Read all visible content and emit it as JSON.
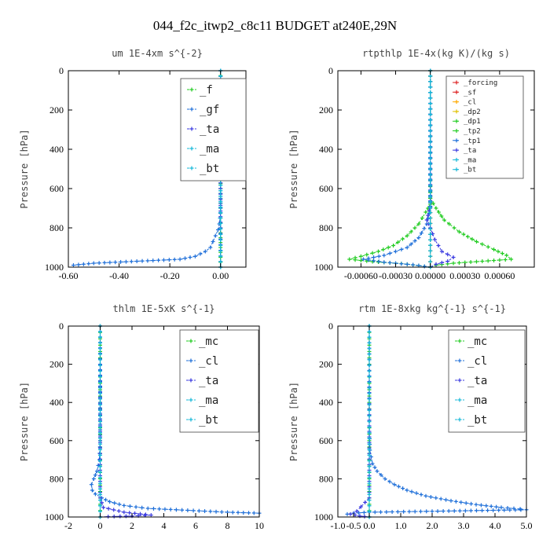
{
  "figure": {
    "title": "044_f2c_itwp2_c8c11  BUDGET at240E,29N"
  },
  "colors": {
    "green": "#22cc22",
    "blue": "#1e6fd9",
    "purple": "#3a3ae0",
    "cyan": "#16b8d8",
    "red": "#dd2222",
    "orange": "#ffaa00",
    "yellow": "#e0c000",
    "navy": "#1133aa"
  },
  "chart_data": [
    {
      "type": "line",
      "title": "um  1E-4xm s^{-2}",
      "ylabel": "Pressure [hPa]",
      "xlabel": "",
      "xlim": [
        -0.6,
        0.1
      ],
      "ylim": [
        1000,
        0
      ],
      "xticks": [
        -0.6,
        -0.4,
        -0.2,
        0.0
      ],
      "xtick_labels": [
        "-0.60",
        "-0.40",
        "-0.20",
        "0.00"
      ],
      "yticks": [
        0,
        200,
        400,
        600,
        800,
        1000
      ],
      "legend_size": "big",
      "series": [
        {
          "name": "_f",
          "color": "#22cc22",
          "x": [
            0,
            0,
            0,
            0,
            0,
            0,
            0,
            0,
            0,
            0,
            0
          ],
          "y": [
            0,
            100,
            200,
            300,
            400,
            500,
            600,
            700,
            800,
            900,
            1000
          ]
        },
        {
          "name": "_gf",
          "color": "#1e6fd9",
          "x": [
            0,
            0,
            0,
            0,
            0,
            0,
            -0.002,
            -0.005,
            -0.01,
            -0.02,
            -0.03,
            -0.04,
            -0.06,
            -0.1,
            -0.16,
            -0.33,
            -0.5,
            -0.58
          ],
          "y": [
            0,
            200,
            400,
            600,
            650,
            700,
            750,
            780,
            810,
            840,
            870,
            900,
            920,
            945,
            960,
            970,
            980,
            990
          ]
        },
        {
          "name": "_ta",
          "color": "#3a3ae0",
          "x": [
            0,
            0,
            0,
            0
          ],
          "y": [
            0,
            400,
            800,
            1000
          ]
        },
        {
          "name": "_ma",
          "color": "#16b8d8",
          "x": [
            0,
            0,
            0
          ],
          "y": [
            0,
            500,
            1000
          ]
        },
        {
          "name": "_bt",
          "color": "#16b8d8",
          "x": [
            0,
            0,
            0
          ],
          "y": [
            0,
            500,
            1000
          ]
        }
      ]
    },
    {
      "type": "line",
      "title": "rtpthlp  1E-4x(kg K)/(kg s)",
      "ylabel": "Pressure [hPa]",
      "xlabel": "",
      "xlim": [
        -0.0008,
        0.0009
      ],
      "ylim": [
        1000,
        0
      ],
      "xticks": [
        -0.0006,
        -0.0003,
        0.0,
        0.0003,
        0.0006
      ],
      "xtick_labels": [
        "-0.00060",
        "-0.00030",
        "0.00000",
        "0.00030",
        "0.00060"
      ],
      "yticks": [
        0,
        200,
        400,
        600,
        800,
        1000
      ],
      "legend_size": "small",
      "series": [
        {
          "name": "_forcing",
          "color": "#dd2222",
          "x": [
            0,
            0,
            0,
            0,
            0
          ],
          "y": [
            0,
            250,
            500,
            750,
            1000
          ]
        },
        {
          "name": "_sf",
          "color": "#dd2222",
          "x": [
            0,
            0,
            0,
            0,
            0
          ],
          "y": [
            0,
            250,
            500,
            750,
            1000
          ]
        },
        {
          "name": "_cl",
          "color": "#ffaa00",
          "x": [
            0,
            0,
            0
          ],
          "y": [
            0,
            500,
            1000
          ]
        },
        {
          "name": "_dp2",
          "color": "#e0c000",
          "x": [
            0,
            0,
            0
          ],
          "y": [
            0,
            500,
            1000
          ]
        },
        {
          "name": "_dp1",
          "color": "#22cc22",
          "x": [
            0,
            0,
            0,
            5e-05,
            0.00012,
            0.00025,
            0.0004,
            0.00055,
            0.00066,
            0.0007,
            0.00045,
            0.0002,
            5e-05,
            0.0
          ],
          "y": [
            0,
            500,
            650,
            700,
            760,
            820,
            870,
            910,
            940,
            960,
            970,
            980,
            990,
            1000
          ]
        },
        {
          "name": "_tp2",
          "color": "#22cc22",
          "x": [
            0,
            0,
            0,
            -4e-05,
            -0.0001,
            -0.0002,
            -0.00032,
            -0.00045,
            -0.0006,
            -0.0007,
            -0.0005,
            -0.00025,
            -0.0001,
            0.0
          ],
          "y": [
            0,
            500,
            680,
            720,
            780,
            840,
            890,
            920,
            945,
            960,
            972,
            982,
            992,
            1000
          ]
        },
        {
          "name": "_tp1",
          "color": "#1e6fd9",
          "x": [
            0,
            0,
            -3e-05,
            -0.0001,
            -0.0002,
            -0.0004,
            -0.00058,
            -0.0004,
            -0.00015,
            0.0
          ],
          "y": [
            0,
            700,
            780,
            850,
            900,
            940,
            960,
            975,
            988,
            1000
          ]
        },
        {
          "name": "_ta",
          "color": "#3a3ae0",
          "x": [
            0,
            0,
            -3e-05,
            0.0,
            4e-05,
            0.0001,
            0.0002,
            0.00015,
            5e-05,
            0.0
          ],
          "y": [
            0,
            690,
            760,
            800,
            860,
            920,
            950,
            970,
            985,
            1000
          ]
        },
        {
          "name": "_ma",
          "color": "#16b8d8",
          "x": [
            0,
            0,
            0
          ],
          "y": [
            0,
            500,
            1000
          ]
        },
        {
          "name": "_bt",
          "color": "#16b8d8",
          "x": [
            0,
            0,
            0
          ],
          "y": [
            0,
            500,
            1000
          ]
        }
      ]
    },
    {
      "type": "line",
      "title": "thlm  1E-5xK s^{-1}",
      "ylabel": "Pressure [hPa]",
      "xlabel": "",
      "xlim": [
        -2,
        10
      ],
      "ylim": [
        1000,
        0
      ],
      "xticks": [
        -2,
        0,
        2,
        4,
        6,
        8,
        10
      ],
      "xtick_labels": [
        "-2",
        "0",
        "2",
        "4",
        "6",
        "8",
        "10"
      ],
      "yticks": [
        0,
        200,
        400,
        600,
        800,
        1000
      ],
      "legend_size": "big",
      "series": [
        {
          "name": "_mc",
          "color": "#22cc22",
          "x": [
            0,
            0,
            0,
            0,
            0,
            0,
            0,
            0,
            0,
            0,
            0
          ],
          "y": [
            0,
            100,
            200,
            300,
            400,
            500,
            600,
            700,
            800,
            900,
            1000
          ]
        },
        {
          "name": "_cl",
          "color": "#1e6fd9",
          "x": [
            0,
            0,
            -0.05,
            -0.2,
            -0.4,
            -0.55,
            -0.5,
            -0.3,
            0.1,
            0.6,
            1.5,
            3.0,
            5.5,
            8.0,
            10.0
          ],
          "y": [
            0,
            600,
            700,
            760,
            800,
            830,
            860,
            880,
            900,
            920,
            940,
            955,
            965,
            975,
            980
          ]
        },
        {
          "name": "_ta",
          "color": "#3a3ae0",
          "x": [
            0,
            0,
            0.2,
            1.5,
            3.2,
            2.0,
            0.5,
            0.0
          ],
          "y": [
            0,
            900,
            950,
            975,
            990,
            995,
            998,
            1000
          ]
        },
        {
          "name": "_ma",
          "color": "#16b8d8",
          "x": [
            0,
            0,
            0
          ],
          "y": [
            0,
            500,
            1000
          ]
        },
        {
          "name": "_bt",
          "color": "#16b8d8",
          "x": [
            0,
            0,
            0
          ],
          "y": [
            0,
            500,
            1000
          ]
        }
      ]
    },
    {
      "type": "line",
      "title": "rtm  1E-8xkg kg^{-1} s^{-1}",
      "ylabel": "Pressure [hPa]",
      "xlabel": "",
      "xlim": [
        -1.0,
        5.0
      ],
      "ylim": [
        1000,
        0
      ],
      "xticks": [
        -1.0,
        -0.5,
        0.0,
        1.0,
        2.0,
        3.0,
        4.0,
        5.0
      ],
      "xtick_labels": [
        "-1.0",
        "-0.5",
        "0.0",
        "1.0",
        "2.0",
        "3.0",
        "4.0",
        "5.0"
      ],
      "yticks": [
        0,
        200,
        400,
        600,
        800,
        1000
      ],
      "legend_size": "big",
      "series": [
        {
          "name": "_mc",
          "color": "#22cc22",
          "x": [
            0,
            0,
            0,
            0,
            0,
            0,
            0,
            0,
            0,
            0,
            0
          ],
          "y": [
            0,
            100,
            200,
            300,
            400,
            500,
            600,
            700,
            800,
            900,
            1000
          ]
        },
        {
          "name": "_cl",
          "color": "#1e6fd9",
          "x": [
            0,
            0,
            0.02,
            0.1,
            0.25,
            0.5,
            0.8,
            1.2,
            1.8,
            2.6,
            3.4,
            4.2,
            4.8,
            5.0,
            2.0,
            0.0,
            -0.5,
            -0.7
          ],
          "y": [
            0,
            500,
            650,
            720,
            760,
            800,
            830,
            860,
            890,
            915,
            935,
            950,
            958,
            962,
            970,
            975,
            980,
            985
          ]
        },
        {
          "name": "_ta",
          "color": "#3a3ae0",
          "x": [
            0,
            0,
            -0.4,
            -0.6,
            -0.3,
            0.0
          ],
          "y": [
            0,
            900,
            970,
            985,
            995,
            1000
          ]
        },
        {
          "name": "_ma",
          "color": "#16b8d8",
          "x": [
            0,
            0,
            0
          ],
          "y": [
            0,
            500,
            1000
          ]
        },
        {
          "name": "_bt",
          "color": "#16b8d8",
          "x": [
            0,
            0,
            0
          ],
          "y": [
            0,
            500,
            1000
          ]
        }
      ]
    }
  ]
}
